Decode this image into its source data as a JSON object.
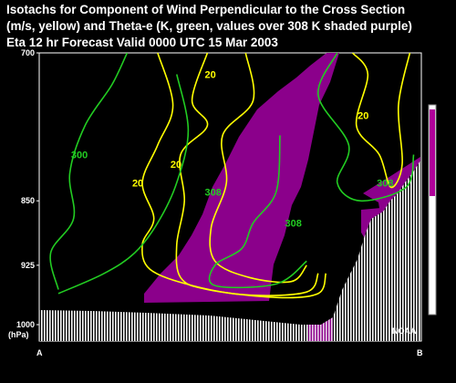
{
  "title": {
    "line1": "Isotachs for Component of Wind Perpendicular to the Cross Section",
    "line2": "(m/s, yellow) and Theta-e (K, green, values over 308 K shaded purple)",
    "line3": "Eta 12 hr Forecast Valid 0000 UTC  15 Mar 2003"
  },
  "colors": {
    "background": "#000000",
    "isotach": "#ffff00",
    "theta_e": "#22cc22",
    "shade": "#8b008b",
    "palette_top": "#b0009a",
    "terrain": "#ffffff",
    "frame": "#ffffff"
  },
  "watermark": "NOAA",
  "endpoints": {
    "left": "A",
    "right": "B"
  },
  "chart_data": {
    "type": "contour",
    "title": "Isotachs for Component of Wind Perpendicular to the Cross Section (m/s, yellow) and Theta-e (K, green, values over 308 K shaded purple)",
    "subtitle": "Eta 12 hr Forecast Valid 0000 UTC  15 Mar 2003",
    "xlabel": "",
    "ylabel": "",
    "y_axis": {
      "unit_label": "(hPa)",
      "scale": "log-pressure",
      "range": [
        1000,
        700
      ],
      "ticks": [
        {
          "value": 700,
          "label": "700"
        },
        {
          "value": 850,
          "label": "850"
        },
        {
          "value": 925,
          "label": "925"
        },
        {
          "value": 1000,
          "label": "1000"
        }
      ]
    },
    "x_axis": {
      "start_label": "A",
      "end_label": "B",
      "range": [
        0,
        1
      ]
    },
    "shading": {
      "threshold_K": 308,
      "description": "values over 308 K shaded purple"
    },
    "series": [
      {
        "name": "Isotachs (m/s)",
        "color": "#ffff00",
        "contours": [
          {
            "value": 20,
            "label": "20",
            "label_at": [
              0.45,
              720
            ],
            "path": [
              [
                0.44,
                700
              ],
              [
                0.4,
                745
              ],
              [
                0.44,
                770
              ],
              [
                0.37,
                800
              ],
              [
                0.38,
                850
              ],
              [
                0.36,
                900
              ],
              [
                0.37,
                940
              ],
              [
                0.44,
                955
              ],
              [
                0.62,
                965
              ],
              [
                0.73,
                960
              ],
              [
                0.75,
                935
              ]
            ]
          },
          {
            "value": 20,
            "label": "20",
            "label_at": [
              0.36,
              810
            ],
            "path": [
              [
                0.31,
                700
              ],
              [
                0.35,
                750
              ],
              [
                0.31,
                790
              ],
              [
                0.27,
                830
              ],
              [
                0.3,
                870
              ],
              [
                0.27,
                900
              ],
              [
                0.29,
                930
              ],
              [
                0.4,
                950
              ],
              [
                0.55,
                962
              ],
              [
                0.7,
                958
              ],
              [
                0.73,
                935
              ]
            ]
          },
          {
            "value": 20,
            "label": "20",
            "label_at": [
              0.26,
              830
            ],
            "path": [
              [
                0.54,
                700
              ],
              [
                0.56,
                745
              ],
              [
                0.48,
                780
              ],
              [
                0.49,
                830
              ],
              [
                0.45,
                880
              ],
              [
                0.46,
                920
              ],
              [
                0.55,
                940
              ],
              [
                0.66,
                945
              ],
              [
                0.7,
                925
              ]
            ]
          },
          {
            "value": 20,
            "label": "20",
            "label_at": [
              0.85,
              760
            ],
            "path": [
              [
                0.82,
                700
              ],
              [
                0.86,
                720
              ],
              [
                0.83,
                770
              ],
              [
                0.89,
                800
              ],
              [
                0.92,
                835
              ],
              [
                0.95,
                810
              ],
              [
                0.94,
                750
              ],
              [
                0.97,
                700
              ]
            ]
          }
        ]
      },
      {
        "name": "Theta-e (K)",
        "color": "#22cc22",
        "contours": [
          {
            "value": 300,
            "label": "300",
            "label_at": [
              0.1,
              800
            ],
            "path": [
              [
                0.23,
                700
              ],
              [
                0.19,
                730
              ],
              [
                0.12,
                770
              ],
              [
                0.08,
                820
              ],
              [
                0.09,
                870
              ],
              [
                0.03,
                910
              ],
              [
                0.05,
                955
              ]
            ]
          },
          {
            "value": 308,
            "label": "308",
            "label_at": [
              0.45,
              840
            ],
            "path": [
              [
                0.36,
                720
              ],
              [
                0.39,
                775
              ],
              [
                0.36,
                830
              ],
              [
                0.31,
                875
              ],
              [
                0.25,
                910
              ],
              [
                0.17,
                935
              ],
              [
                0.05,
                960
              ]
            ]
          },
          {
            "value": 308,
            "label": "308",
            "label_at": [
              0.66,
              875
            ],
            "path": [
              [
                0.63,
                780
              ],
              [
                0.62,
                840
              ],
              [
                0.56,
                875
              ],
              [
                0.53,
                905
              ],
              [
                0.46,
                925
              ],
              [
                0.46,
                950
              ],
              [
                0.62,
                948
              ],
              [
                0.7,
                920
              ]
            ]
          },
          {
            "value": 308,
            "label": "308",
            "label_at": [
              0.9,
              830
            ],
            "path": [
              [
                0.78,
                700
              ],
              [
                0.73,
                740
              ],
              [
                0.81,
                790
              ],
              [
                0.78,
                830
              ],
              [
                0.84,
                850
              ],
              [
                0.96,
                835
              ],
              [
                0.98,
                800
              ]
            ]
          }
        ]
      }
    ],
    "terrain": {
      "description": "surface shown as white hatching rising toward B"
    }
  }
}
